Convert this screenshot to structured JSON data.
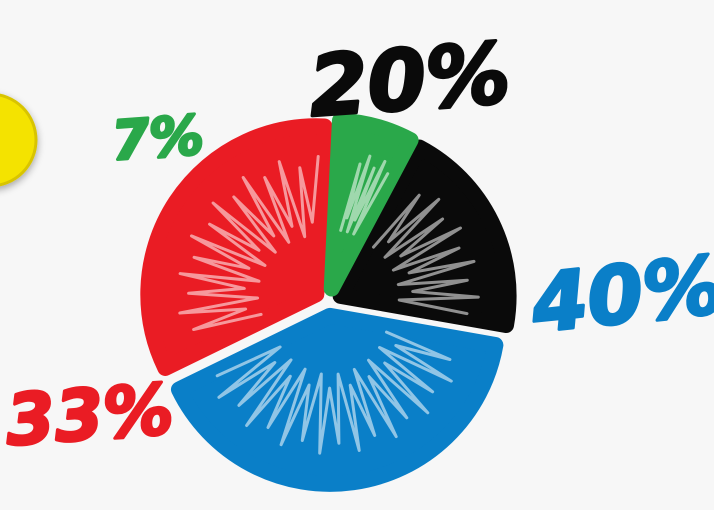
{
  "chart_data": {
    "type": "pie",
    "categories": [
      "",
      "",
      "",
      ""
    ],
    "values": [
      20,
      40,
      33,
      7
    ],
    "labels": [
      "20%",
      "40%",
      "33%",
      "7%"
    ],
    "colors": [
      "#0a0a0a",
      "#0a7fc8",
      "#ea1c24",
      "#2aa84a"
    ],
    "title": "",
    "legend": "none",
    "exploded": true
  },
  "decoration": {
    "circle_color": "#f4e300"
  }
}
